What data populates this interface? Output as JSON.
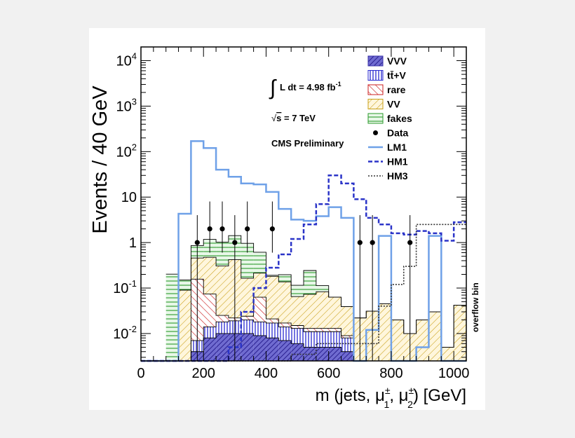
{
  "chart_data": {
    "type": "bar",
    "ylabel": "Events / 40 GeV",
    "xlabel_prefix": "m (jets, ",
    "xlabel_suffix": ") [GeV]",
    "xlabel_mu": "μ",
    "xlabel_pm": "±",
    "xlabel_sub1": "1",
    "xlabel_sub2": "2",
    "xlabel_sep": ", ",
    "y_scale": "log",
    "xlim": [
      0,
      1040
    ],
    "ylim": [
      0.0025,
      20000
    ],
    "x_ticks": [
      {
        "value": 0,
        "label": "0"
      },
      {
        "value": 200,
        "label": "200"
      },
      {
        "value": 400,
        "label": "400"
      },
      {
        "value": 600,
        "label": "600"
      },
      {
        "value": 800,
        "label": "800"
      },
      {
        "value": 1000,
        "label": "1000"
      }
    ],
    "y_ticks": [
      {
        "value": 0.01,
        "base": "10",
        "exp": "-2",
        "plain": ""
      },
      {
        "value": 0.1,
        "base": "10",
        "exp": "-1",
        "plain": ""
      },
      {
        "value": 1,
        "base": "",
        "exp": "",
        "plain": "1"
      },
      {
        "value": 10,
        "base": "",
        "exp": "",
        "plain": "10"
      },
      {
        "value": 100,
        "base": "10",
        "exp": "2",
        "plain": ""
      },
      {
        "value": 1000,
        "base": "10",
        "exp": "3",
        "plain": ""
      },
      {
        "value": 10000,
        "base": "10",
        "exp": "4",
        "plain": ""
      }
    ],
    "bin_edges": [
      80,
      120,
      160,
      200,
      240,
      280,
      320,
      360,
      400,
      440,
      480,
      520,
      560,
      600,
      640,
      680,
      720,
      760,
      800,
      840,
      880,
      920,
      960,
      1000,
      1040
    ],
    "stack": [
      {
        "name": "VVV",
        "color": "#3a31a8",
        "pattern": "vvv",
        "values": [
          0,
          0,
          0.004,
          0.008,
          0.01,
          0.01,
          0.01,
          0.009,
          0.008,
          0.007,
          0.006,
          0.005,
          0.005,
          0.005,
          0.004,
          0.002,
          0.001,
          0,
          0,
          0,
          0,
          0,
          0,
          0.002
        ]
      },
      {
        "name": "tt̄+V",
        "color": "#2a2ad0",
        "pattern": "ttv",
        "values": [
          0,
          0,
          0.003,
          0.006,
          0.008,
          0.009,
          0.01,
          0.009,
          0.009,
          0.007,
          0.007,
          0.006,
          0.006,
          0.006,
          0.004,
          0,
          0,
          0,
          0,
          0,
          0,
          0,
          0,
          0
        ]
      },
      {
        "name": "rare",
        "color": "#cc2222",
        "pattern": "rare",
        "values": [
          0,
          0,
          0.15,
          0.06,
          0.007,
          0.003,
          0.004,
          0.045,
          0.004,
          0.003,
          0.002,
          0.002,
          0.002,
          0.002,
          0.001,
          0,
          0,
          0,
          0,
          0,
          0,
          0,
          0,
          0
        ]
      },
      {
        "name": "VV",
        "color": "#c8a018",
        "pattern": "vv",
        "values": [
          0.0025,
          0.09,
          0.3,
          0.4,
          0.28,
          0.4,
          0.14,
          0.15,
          0.16,
          0.12,
          0.05,
          0.06,
          0.07,
          0.05,
          0.03,
          0.02,
          0.03,
          0.045,
          0.02,
          0.01,
          0.02,
          0.03,
          0.005,
          0.04
        ]
      },
      {
        "name": "fakes",
        "color": "#2a9a2a",
        "pattern": "fakes",
        "values": [
          0.2,
          0.06,
          0.4,
          0.7,
          0.72,
          1.0,
          0.8,
          0.4,
          0.01,
          0.06,
          0.05,
          0.17,
          0.03,
          0,
          0,
          0,
          0,
          0,
          0,
          0,
          0,
          0,
          0,
          0
        ]
      }
    ],
    "lines": [
      {
        "name": "LM1",
        "color": "#6fa1e8",
        "style": "solid",
        "width": 2.5,
        "values": [
          0.0025,
          4.3,
          170,
          120,
          40,
          28,
          20,
          19,
          13,
          5.5,
          3.2,
          3.0,
          3.8,
          6.0,
          3.5,
          0.0025,
          0.012,
          1.4,
          0.0025,
          0.0025,
          0.005,
          1.4,
          0.0025,
          0.0025
        ]
      },
      {
        "name": "HM1",
        "color": "#2b34c8",
        "style": "dashed",
        "width": 2.5,
        "values": [
          0.0025,
          0.0025,
          0.0025,
          0.0025,
          0.0025,
          0.005,
          0.03,
          0.1,
          0.28,
          0.55,
          1.2,
          2.5,
          7.0,
          30,
          20,
          9.0,
          3.5,
          2.5,
          1.6,
          1.5,
          1.8,
          1.6,
          1.1,
          2.8
        ]
      },
      {
        "name": "HM3",
        "color": "#333333",
        "style": "dotted",
        "width": 1.6,
        "values": [
          0.0025,
          0.0025,
          0.0025,
          0.0025,
          0.0025,
          0.0025,
          0.0025,
          0.0025,
          0.0025,
          0.0025,
          0.0035,
          0.0035,
          0.006,
          0.006,
          0.006,
          0.006,
          0.006,
          0.04,
          0.12,
          0.3,
          2.5,
          2.5,
          2.5,
          2.5
        ]
      }
    ],
    "data_points": [
      {
        "x": 180,
        "y": 1
      },
      {
        "x": 220,
        "y": 2
      },
      {
        "x": 260,
        "y": 2
      },
      {
        "x": 300,
        "y": 1
      },
      {
        "x": 340,
        "y": 2
      },
      {
        "x": 420,
        "y": 2
      },
      {
        "x": 700,
        "y": 1
      },
      {
        "x": 740,
        "y": 1
      },
      {
        "x": 860,
        "y": 1
      }
    ],
    "legend": {
      "position": "top-right",
      "entries": [
        {
          "label": "VVV",
          "kind": "fill",
          "ref": "vvv"
        },
        {
          "label": "tt̄+V",
          "kind": "fill",
          "ref": "ttv"
        },
        {
          "label": "rare",
          "kind": "fill",
          "ref": "rare"
        },
        {
          "label": "VV",
          "kind": "fill",
          "ref": "vv"
        },
        {
          "label": "fakes",
          "kind": "fill",
          "ref": "fakes"
        },
        {
          "label": "Data",
          "kind": "marker",
          "ref": "data"
        },
        {
          "label": "LM1",
          "kind": "line",
          "ref": "LM1"
        },
        {
          "label": "HM1",
          "kind": "line",
          "ref": "HM1"
        },
        {
          "label": "HM3",
          "kind": "line",
          "ref": "HM3"
        }
      ]
    },
    "annotations": {
      "lumi_integral": "∫",
      "lumi_text": "L dt = 4.98 fb",
      "lumi_sup": "-1",
      "energy_sqrt": "√",
      "energy_s": "s",
      "energy_rest": " = 7 TeV",
      "cms": "CMS Preliminary",
      "overflow": "overflow bin"
    }
  }
}
